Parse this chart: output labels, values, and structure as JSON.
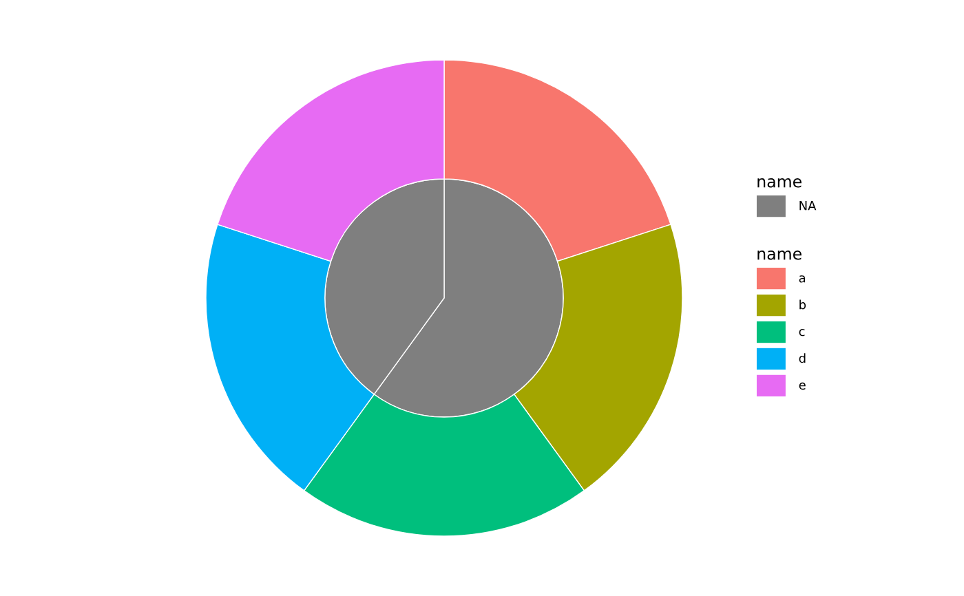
{
  "chart_data": {
    "type": "pie",
    "legend": "right",
    "legend_title": "name",
    "categories": [
      "NA",
      null,
      "a",
      "b",
      "c",
      "d",
      "e"
    ],
    "colors": [
      "#7f7f7f",
      "#7f7f7f",
      "#f8766d",
      "#a3a500",
      "#00bf7d",
      "#00b0f6",
      "#e76bf3"
    ],
    "series": [
      {
        "values": [
          60,
          40,
          null,
          null,
          null,
          null,
          null
        ]
      },
      {
        "values": [
          null,
          null,
          20,
          20,
          20,
          20,
          20
        ]
      }
    ]
  }
}
